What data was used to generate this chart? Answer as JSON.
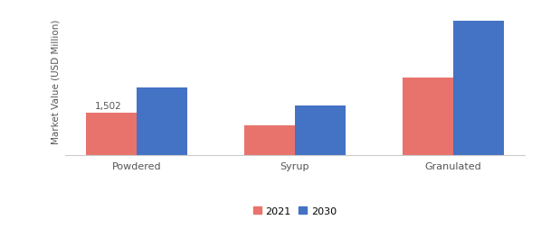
{
  "categories": [
    "Powdered",
    "Syrup",
    "Granulated"
  ],
  "values_2021": [
    1502,
    1050,
    2700
  ],
  "values_2030": [
    2350,
    1750,
    4700
  ],
  "color_2021": "#e8736c",
  "color_2030": "#4472c4",
  "ylabel": "Market Value (USD Million)",
  "annotation": "1,502",
  "bar_width": 0.32,
  "ylim": [
    0,
    5200
  ],
  "legend_labels": [
    "2021",
    "2030"
  ],
  "background_color": "#ffffff",
  "axis_label_fontsize": 7.5,
  "tick_fontsize": 8,
  "legend_fontsize": 8,
  "annotation_fontsize": 7.5
}
